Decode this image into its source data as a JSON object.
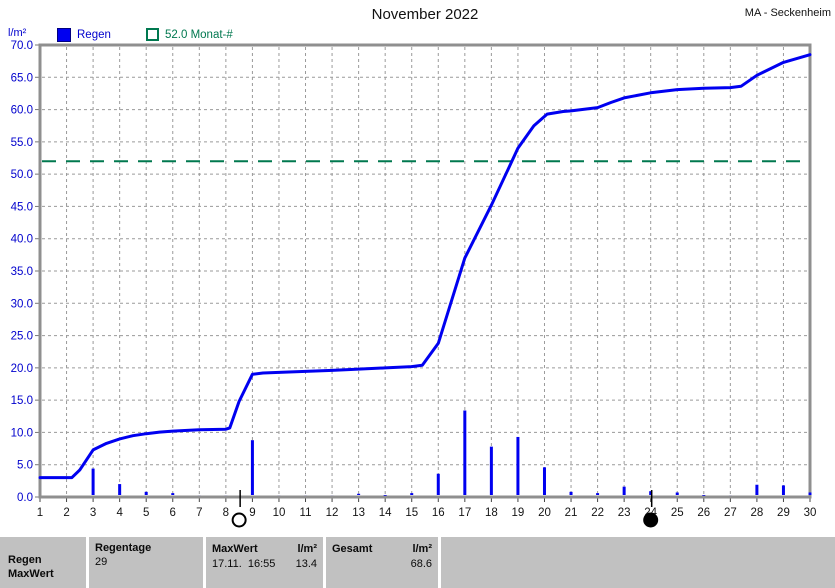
{
  "header": {
    "title": "November 2022",
    "station": "MA - Seckenheim"
  },
  "legend": {
    "unit_label": "l/m²",
    "rain_label": "Regen",
    "average_label": "52.0 Monat-#"
  },
  "colors": {
    "rain": "#0000f0",
    "axis_label_blue": "#0000cd",
    "average_green": "#00784f",
    "frame_gray": "#8f8f8f",
    "grid_gray": "#9a9a9a",
    "x_label_black": "#141414",
    "footer_bg": "#c1c1c1"
  },
  "chart_data": {
    "type": "line",
    "title": "November 2022",
    "xlabel": "",
    "ylabel": "l/m²",
    "ylim": [
      0,
      70
    ],
    "ytick_step": 5,
    "xlim": [
      1,
      30
    ],
    "grid": true,
    "categories": [
      1,
      2,
      3,
      4,
      5,
      6,
      7,
      8,
      9,
      10,
      11,
      12,
      13,
      14,
      15,
      16,
      17,
      18,
      19,
      20,
      21,
      22,
      23,
      24,
      25,
      26,
      27,
      28,
      29,
      30
    ],
    "reference_line": {
      "value": 52.0,
      "label": "52.0 Monat-#"
    },
    "series": [
      {
        "name": "Regen (kumuliert)",
        "type": "line",
        "points": [
          [
            1,
            3.0
          ],
          [
            2.2,
            3.0
          ],
          [
            2.5,
            4.2
          ],
          [
            3,
            7.3
          ],
          [
            3.5,
            8.3
          ],
          [
            4,
            9.0
          ],
          [
            4.5,
            9.5
          ],
          [
            5,
            9.8
          ],
          [
            5.5,
            10.05
          ],
          [
            6,
            10.2
          ],
          [
            7,
            10.4
          ],
          [
            8,
            10.5
          ],
          [
            8.15,
            10.7
          ],
          [
            8.5,
            14.8
          ],
          [
            9,
            19.0
          ],
          [
            9.4,
            19.2
          ],
          [
            10,
            19.3
          ],
          [
            11,
            19.45
          ],
          [
            12,
            19.6
          ],
          [
            13,
            19.8
          ],
          [
            14,
            20.0
          ],
          [
            15,
            20.2
          ],
          [
            15.4,
            20.4
          ],
          [
            16,
            23.8
          ],
          [
            17,
            37.0
          ],
          [
            18,
            45.2
          ],
          [
            19,
            54.0
          ],
          [
            19.6,
            57.5
          ],
          [
            20.1,
            59.3
          ],
          [
            20.7,
            59.7
          ],
          [
            21,
            59.8
          ],
          [
            22,
            60.3
          ],
          [
            22.5,
            61.1
          ],
          [
            23,
            61.8
          ],
          [
            24,
            62.6
          ],
          [
            25,
            63.1
          ],
          [
            26,
            63.3
          ],
          [
            27,
            63.4
          ],
          [
            27.4,
            63.6
          ],
          [
            28,
            65.3
          ],
          [
            29,
            67.3
          ],
          [
            30,
            68.5
          ]
        ]
      },
      {
        "name": "Regen (Tageswerte)",
        "type": "bar",
        "values": [
          0,
          0,
          4.4,
          2.0,
          0.8,
          0.6,
          0.3,
          0.3,
          8.8,
          0.3,
          0.3,
          0.3,
          0.5,
          0.2,
          0.6,
          3.6,
          13.4,
          7.8,
          9.3,
          4.6,
          0.8,
          0.6,
          1.6,
          0.9,
          0.7,
          0.2,
          0.3,
          1.9,
          1.8,
          0.7
        ]
      }
    ],
    "moon_markers": [
      {
        "day": 8.5,
        "phase": "full-moon",
        "style": "open"
      },
      {
        "day": 24.0,
        "phase": "new-moon",
        "style": "solid"
      }
    ]
  },
  "footer": {
    "col1": {
      "line1": "Regen",
      "line2": "MaxWert"
    },
    "col2": {
      "header": "Regentage",
      "value": "29"
    },
    "col3": {
      "header": "MaxWert",
      "unit": "l/m²",
      "value_date": "17.11.  16:55",
      "value": "13.4"
    },
    "col4": {
      "header": "Gesamt",
      "unit": "l/m²",
      "value": "68.6"
    }
  }
}
